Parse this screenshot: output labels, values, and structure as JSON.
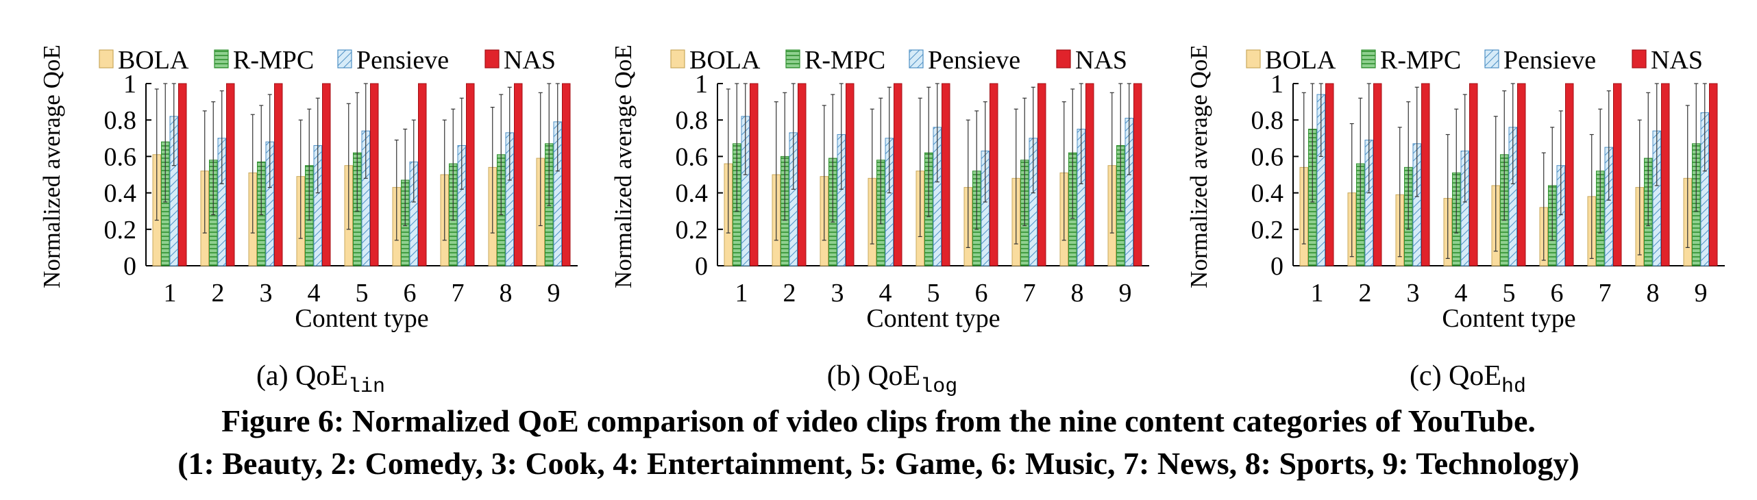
{
  "figure": {
    "caption_line1": "Figure 6: Normalized QoE comparison of video clips from the nine content categories of YouTube.",
    "caption_line2": "(1: Beauty, 2: Comedy, 3: Cook, 4: Entertainment, 5: Game, 6: Music, 7: News, 8: Sports, 9: Technology)"
  },
  "colors": {
    "BOLA": "#f9dc9e",
    "R-MPC": "#8fd08f",
    "Pensieve": "#c9e3f4",
    "NAS": "#e0232b"
  },
  "chart_data": [
    {
      "type": "bar",
      "subcaption_prefix": "(a) QoE",
      "subcaption_sub": "lin",
      "xlabel": "Content type",
      "ylabel": "Normalized average QoE",
      "ylim": [
        0,
        1
      ],
      "yticks": [
        "0",
        "0.2",
        "0.4",
        "0.6",
        "0.8",
        "1"
      ],
      "categories": [
        "1",
        "2",
        "3",
        "4",
        "5",
        "6",
        "7",
        "8",
        "9"
      ],
      "legend_position": "top",
      "series": [
        {
          "name": "BOLA",
          "values": [
            0.61,
            0.52,
            0.51,
            0.49,
            0.55,
            0.43,
            0.5,
            0.54,
            0.59
          ],
          "err_low": [
            0.25,
            0.18,
            0.18,
            0.15,
            0.2,
            0.14,
            0.14,
            0.18,
            0.22
          ],
          "err_high": [
            0.97,
            0.85,
            0.83,
            0.8,
            0.89,
            0.69,
            0.8,
            0.87,
            0.95
          ]
        },
        {
          "name": "R-MPC",
          "values": [
            0.68,
            0.58,
            0.57,
            0.55,
            0.62,
            0.47,
            0.56,
            0.61,
            0.67
          ],
          "err_low": [
            0.35,
            0.28,
            0.28,
            0.25,
            0.3,
            0.22,
            0.25,
            0.28,
            0.33
          ],
          "err_high": [
            1.0,
            0.9,
            0.88,
            0.86,
            0.95,
            0.75,
            0.86,
            0.94,
            1.0
          ]
        },
        {
          "name": "Pensieve",
          "values": [
            0.82,
            0.7,
            0.68,
            0.66,
            0.74,
            0.57,
            0.66,
            0.73,
            0.79
          ],
          "err_low": [
            0.55,
            0.45,
            0.43,
            0.4,
            0.48,
            0.35,
            0.42,
            0.47,
            0.52
          ],
          "err_high": [
            1.0,
            0.96,
            0.94,
            0.92,
            1.0,
            0.8,
            0.92,
            0.98,
            1.0
          ]
        },
        {
          "name": "NAS",
          "values": [
            1,
            1,
            1,
            1,
            1,
            1,
            1,
            1,
            1
          ]
        }
      ]
    },
    {
      "type": "bar",
      "subcaption_prefix": "(b) QoE",
      "subcaption_sub": "log",
      "xlabel": "Content type",
      "ylabel": "Normalized average QoE",
      "ylim": [
        0,
        1
      ],
      "yticks": [
        "0",
        "0.2",
        "0.4",
        "0.6",
        "0.8",
        "1"
      ],
      "categories": [
        "1",
        "2",
        "3",
        "4",
        "5",
        "6",
        "7",
        "8",
        "9"
      ],
      "legend_position": "top",
      "series": [
        {
          "name": "BOLA",
          "values": [
            0.56,
            0.5,
            0.49,
            0.48,
            0.52,
            0.43,
            0.48,
            0.51,
            0.55
          ],
          "err_low": [
            0.18,
            0.14,
            0.14,
            0.12,
            0.16,
            0.1,
            0.12,
            0.14,
            0.18
          ],
          "err_high": [
            0.97,
            0.9,
            0.88,
            0.86,
            0.92,
            0.8,
            0.86,
            0.9,
            0.95
          ]
        },
        {
          "name": "R-MPC",
          "values": [
            0.67,
            0.6,
            0.59,
            0.58,
            0.62,
            0.52,
            0.58,
            0.62,
            0.66
          ],
          "err_low": [
            0.3,
            0.25,
            0.24,
            0.23,
            0.27,
            0.2,
            0.22,
            0.26,
            0.3
          ],
          "err_high": [
            1.0,
            0.95,
            0.94,
            0.92,
            0.98,
            0.85,
            0.92,
            0.97,
            1.0
          ]
        },
        {
          "name": "Pensieve",
          "values": [
            0.82,
            0.73,
            0.72,
            0.7,
            0.76,
            0.63,
            0.7,
            0.75,
            0.81
          ],
          "err_low": [
            0.5,
            0.42,
            0.42,
            0.4,
            0.46,
            0.35,
            0.4,
            0.45,
            0.5
          ],
          "err_high": [
            1.0,
            1.0,
            1.0,
            0.98,
            1.0,
            0.9,
            0.98,
            1.0,
            1.0
          ]
        },
        {
          "name": "NAS",
          "values": [
            1,
            1,
            1,
            1,
            1,
            1,
            1,
            1,
            1
          ]
        }
      ]
    },
    {
      "type": "bar",
      "subcaption_prefix": "(c) QoE",
      "subcaption_sub": "hd",
      "xlabel": "Content type",
      "ylabel": "Normalized average QoE",
      "ylim": [
        0,
        1
      ],
      "yticks": [
        "0",
        "0.2",
        "0.4",
        "0.6",
        "0.8",
        "1"
      ],
      "categories": [
        "1",
        "2",
        "3",
        "4",
        "5",
        "6",
        "7",
        "8",
        "9"
      ],
      "legend_position": "top",
      "series": [
        {
          "name": "BOLA",
          "values": [
            0.54,
            0.4,
            0.39,
            0.37,
            0.44,
            0.32,
            0.38,
            0.43,
            0.48
          ],
          "err_low": [
            0.12,
            0.05,
            0.05,
            0.04,
            0.08,
            0.03,
            0.04,
            0.06,
            0.1
          ],
          "err_high": [
            0.95,
            0.78,
            0.76,
            0.72,
            0.82,
            0.62,
            0.72,
            0.8,
            0.88
          ]
        },
        {
          "name": "R-MPC",
          "values": [
            0.75,
            0.56,
            0.54,
            0.51,
            0.61,
            0.44,
            0.52,
            0.59,
            0.67
          ],
          "err_low": [
            0.35,
            0.2,
            0.2,
            0.18,
            0.25,
            0.14,
            0.18,
            0.22,
            0.3
          ],
          "err_high": [
            1.0,
            0.92,
            0.9,
            0.86,
            0.96,
            0.76,
            0.86,
            0.95,
            1.0
          ]
        },
        {
          "name": "Pensieve",
          "values": [
            0.94,
            0.69,
            0.67,
            0.63,
            0.76,
            0.55,
            0.65,
            0.74,
            0.84
          ],
          "err_low": [
            0.6,
            0.4,
            0.38,
            0.35,
            0.45,
            0.28,
            0.36,
            0.44,
            0.52
          ],
          "err_high": [
            1.0,
            1.0,
            0.98,
            0.94,
            1.0,
            0.85,
            0.96,
            1.0,
            1.0
          ]
        },
        {
          "name": "NAS",
          "values": [
            1,
            1,
            1,
            1,
            1,
            1,
            1,
            1,
            1
          ]
        }
      ]
    }
  ]
}
